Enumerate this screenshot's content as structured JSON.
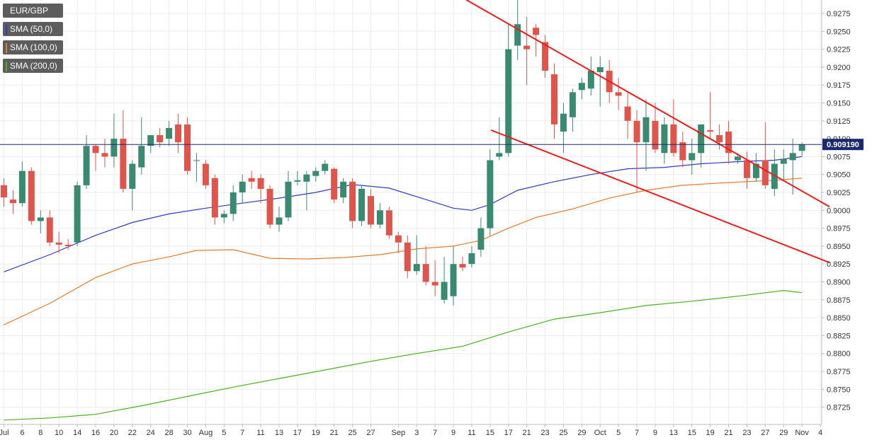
{
  "legend": [
    {
      "label": "EUR/GBP",
      "color": "#5d5d5d"
    },
    {
      "label": "SMA (50,0)",
      "color": "#2e3cc4"
    },
    {
      "label": "SMA (100,0)",
      "color": "#e8792a"
    },
    {
      "label": "SMA (200,0)",
      "color": "#4caf1f"
    }
  ],
  "current_price": {
    "value": 0.9092,
    "label": "0.909190"
  },
  "colors": {
    "up": "#3a8a72",
    "down": "#e0554b",
    "sma50": "#2e3cc4",
    "sma100": "#e8792a",
    "sma200": "#4caf1f",
    "trendline": "#ee1c1c",
    "price_line": "#1a2a6c"
  },
  "chart_data": {
    "type": "candlestick",
    "symbol": "EUR/GBP",
    "y_range": [
      0.8705,
      0.9295
    ],
    "y_ticks": [
      0.9275,
      0.925,
      0.9225,
      0.92,
      0.9175,
      0.915,
      0.9125,
      0.91,
      0.9075,
      0.905,
      0.9025,
      0.9,
      0.8975,
      0.895,
      0.8925,
      0.89,
      0.8875,
      0.885,
      0.8825,
      0.88,
      0.8775,
      0.875,
      0.8725
    ],
    "y_tick_labels": [
      "0.9275",
      "0.9250",
      "0.9225",
      "0.9200",
      "0.9175",
      "0.9150",
      "0.9125",
      "0.9100",
      "0.9075",
      "0.9050",
      "0.9025",
      "0.9000",
      "0.8975",
      "0.8950",
      "0.8925",
      "0.8900",
      "0.8875",
      "0.8850",
      "0.8825",
      "0.8800",
      "0.8775",
      "0.8750",
      "0.8725"
    ],
    "x_range": [
      0,
      116
    ],
    "x_ticks": [
      {
        "i": 0,
        "label": "Jul"
      },
      {
        "i": 2,
        "label": "6"
      },
      {
        "i": 4,
        "label": "8"
      },
      {
        "i": 6,
        "label": "10"
      },
      {
        "i": 8,
        "label": "14"
      },
      {
        "i": 10,
        "label": "16"
      },
      {
        "i": 12,
        "label": "20"
      },
      {
        "i": 14,
        "label": "22"
      },
      {
        "i": 16,
        "label": "24"
      },
      {
        "i": 18,
        "label": "28"
      },
      {
        "i": 20,
        "label": "30"
      },
      {
        "i": 22,
        "label": "Aug"
      },
      {
        "i": 24,
        "label": "5"
      },
      {
        "i": 26,
        "label": "7"
      },
      {
        "i": 28,
        "label": "11"
      },
      {
        "i": 30,
        "label": "13"
      },
      {
        "i": 32,
        "label": "17"
      },
      {
        "i": 34,
        "label": "19"
      },
      {
        "i": 36,
        "label": "21"
      },
      {
        "i": 38,
        "label": "25"
      },
      {
        "i": 40,
        "label": "27"
      },
      {
        "i": 43,
        "label": "Sep"
      },
      {
        "i": 45,
        "label": "3"
      },
      {
        "i": 47,
        "label": "7"
      },
      {
        "i": 49,
        "label": "9"
      },
      {
        "i": 51,
        "label": "11"
      },
      {
        "i": 53,
        "label": "15"
      },
      {
        "i": 55,
        "label": "17"
      },
      {
        "i": 57,
        "label": "21"
      },
      {
        "i": 59,
        "label": "23"
      },
      {
        "i": 61,
        "label": "25"
      },
      {
        "i": 63,
        "label": "29"
      },
      {
        "i": 65,
        "label": "Oct"
      },
      {
        "i": 67,
        "label": "5"
      },
      {
        "i": 69,
        "label": "7"
      },
      {
        "i": 71,
        "label": "9"
      },
      {
        "i": 73,
        "label": "13"
      },
      {
        "i": 75,
        "label": "15"
      },
      {
        "i": 77,
        "label": "19"
      },
      {
        "i": 79,
        "label": "21"
      },
      {
        "i": 81,
        "label": "23"
      },
      {
        "i": 83,
        "label": "27"
      },
      {
        "i": 85,
        "label": "29"
      },
      {
        "i": 87,
        "label": "Nov"
      },
      {
        "i": 89,
        "label": "4"
      }
    ],
    "candles": [
      {
        "o": 0.9035,
        "h": 0.9045,
        "l": 0.9005,
        "c": 0.9018
      },
      {
        "o": 0.9015,
        "h": 0.9028,
        "l": 0.8995,
        "c": 0.901
      },
      {
        "o": 0.901,
        "h": 0.9068,
        "l": 0.9005,
        "c": 0.9055
      },
      {
        "o": 0.9055,
        "h": 0.906,
        "l": 0.898,
        "c": 0.8985
      },
      {
        "o": 0.8985,
        "h": 0.9,
        "l": 0.8968,
        "c": 0.899
      },
      {
        "o": 0.899,
        "h": 0.9,
        "l": 0.895,
        "c": 0.8955
      },
      {
        "o": 0.8955,
        "h": 0.897,
        "l": 0.894,
        "c": 0.8952
      },
      {
        "o": 0.8952,
        "h": 0.896,
        "l": 0.8945,
        "c": 0.895
      },
      {
        "o": 0.8955,
        "h": 0.904,
        "l": 0.895,
        "c": 0.9035
      },
      {
        "o": 0.9035,
        "h": 0.9105,
        "l": 0.903,
        "c": 0.909
      },
      {
        "o": 0.909,
        "h": 0.9092,
        "l": 0.9055,
        "c": 0.908
      },
      {
        "o": 0.908,
        "h": 0.91,
        "l": 0.906,
        "c": 0.9075
      },
      {
        "o": 0.9075,
        "h": 0.9135,
        "l": 0.906,
        "c": 0.91
      },
      {
        "o": 0.91,
        "h": 0.914,
        "l": 0.9025,
        "c": 0.903
      },
      {
        "o": 0.903,
        "h": 0.907,
        "l": 0.9,
        "c": 0.9065
      },
      {
        "o": 0.906,
        "h": 0.913,
        "l": 0.905,
        "c": 0.909
      },
      {
        "o": 0.909,
        "h": 0.91,
        "l": 0.908,
        "c": 0.9105
      },
      {
        "o": 0.9105,
        "h": 0.9115,
        "l": 0.9088,
        "c": 0.9095
      },
      {
        "o": 0.91,
        "h": 0.9125,
        "l": 0.909,
        "c": 0.9115
      },
      {
        "o": 0.912,
        "h": 0.9135,
        "l": 0.908,
        "c": 0.9095
      },
      {
        "o": 0.912,
        "h": 0.913,
        "l": 0.905,
        "c": 0.9055
      },
      {
        "o": 0.907,
        "h": 0.908,
        "l": 0.904,
        "c": 0.907
      },
      {
        "o": 0.9065,
        "h": 0.907,
        "l": 0.903,
        "c": 0.9035
      },
      {
        "o": 0.9045,
        "h": 0.905,
        "l": 0.898,
        "c": 0.899
      },
      {
        "o": 0.899,
        "h": 0.9,
        "l": 0.8982,
        "c": 0.8995
      },
      {
        "o": 0.8995,
        "h": 0.9035,
        "l": 0.8985,
        "c": 0.9025
      },
      {
        "o": 0.9025,
        "h": 0.905,
        "l": 0.901,
        "c": 0.904
      },
      {
        "o": 0.9045,
        "h": 0.9055,
        "l": 0.903,
        "c": 0.904
      },
      {
        "o": 0.9045,
        "h": 0.905,
        "l": 0.901,
        "c": 0.903
      },
      {
        "o": 0.903,
        "h": 0.9035,
        "l": 0.8975,
        "c": 0.898
      },
      {
        "o": 0.898,
        "h": 0.9005,
        "l": 0.897,
        "c": 0.899
      },
      {
        "o": 0.899,
        "h": 0.9055,
        "l": 0.8985,
        "c": 0.904
      },
      {
        "o": 0.904,
        "h": 0.9055,
        "l": 0.9035,
        "c": 0.9042
      },
      {
        "o": 0.904,
        "h": 0.9055,
        "l": 0.9,
        "c": 0.905
      },
      {
        "o": 0.9048,
        "h": 0.906,
        "l": 0.904,
        "c": 0.9055
      },
      {
        "o": 0.9055,
        "h": 0.907,
        "l": 0.905,
        "c": 0.9065
      },
      {
        "o": 0.9058,
        "h": 0.906,
        "l": 0.901,
        "c": 0.9015
      },
      {
        "o": 0.9018,
        "h": 0.9045,
        "l": 0.901,
        "c": 0.904
      },
      {
        "o": 0.904,
        "h": 0.9045,
        "l": 0.8975,
        "c": 0.8985
      },
      {
        "o": 0.8985,
        "h": 0.9035,
        "l": 0.8978,
        "c": 0.903
      },
      {
        "o": 0.902,
        "h": 0.903,
        "l": 0.8975,
        "c": 0.898
      },
      {
        "o": 0.898,
        "h": 0.901,
        "l": 0.8975,
        "c": 0.9
      },
      {
        "o": 0.9,
        "h": 0.9005,
        "l": 0.896,
        "c": 0.8965
      },
      {
        "o": 0.8965,
        "h": 0.897,
        "l": 0.894,
        "c": 0.8955
      },
      {
        "o": 0.8955,
        "h": 0.8965,
        "l": 0.8905,
        "c": 0.8915
      },
      {
        "o": 0.8915,
        "h": 0.8965,
        "l": 0.891,
        "c": 0.8925
      },
      {
        "o": 0.8925,
        "h": 0.895,
        "l": 0.8895,
        "c": 0.89
      },
      {
        "o": 0.89,
        "h": 0.893,
        "l": 0.888,
        "c": 0.8895
      },
      {
        "o": 0.8875,
        "h": 0.8935,
        "l": 0.887,
        "c": 0.89
      },
      {
        "o": 0.888,
        "h": 0.895,
        "l": 0.8867,
        "c": 0.8925
      },
      {
        "o": 0.8925,
        "h": 0.8935,
        "l": 0.8915,
        "c": 0.892
      },
      {
        "o": 0.8925,
        "h": 0.895,
        "l": 0.892,
        "c": 0.894
      },
      {
        "o": 0.8945,
        "h": 0.899,
        "l": 0.8935,
        "c": 0.8975
      },
      {
        "o": 0.8975,
        "h": 0.9085,
        "l": 0.8965,
        "c": 0.907
      },
      {
        "o": 0.9075,
        "h": 0.913,
        "l": 0.907,
        "c": 0.908
      },
      {
        "o": 0.908,
        "h": 0.926,
        "l": 0.9075,
        "c": 0.9225
      },
      {
        "o": 0.923,
        "h": 0.9295,
        "l": 0.921,
        "c": 0.926
      },
      {
        "o": 0.923,
        "h": 0.927,
        "l": 0.9175,
        "c": 0.9225
      },
      {
        "o": 0.9255,
        "h": 0.926,
        "l": 0.9215,
        "c": 0.9245
      },
      {
        "o": 0.9235,
        "h": 0.9245,
        "l": 0.9185,
        "c": 0.9195
      },
      {
        "o": 0.919,
        "h": 0.9205,
        "l": 0.91,
        "c": 0.912
      },
      {
        "o": 0.911,
        "h": 0.915,
        "l": 0.908,
        "c": 0.9135
      },
      {
        "o": 0.913,
        "h": 0.917,
        "l": 0.911,
        "c": 0.9165
      },
      {
        "o": 0.9168,
        "h": 0.9185,
        "l": 0.9155,
        "c": 0.9178
      },
      {
        "o": 0.917,
        "h": 0.9215,
        "l": 0.916,
        "c": 0.9195
      },
      {
        "o": 0.9193,
        "h": 0.9215,
        "l": 0.9145,
        "c": 0.92
      },
      {
        "o": 0.9195,
        "h": 0.921,
        "l": 0.915,
        "c": 0.9165
      },
      {
        "o": 0.9165,
        "h": 0.9185,
        "l": 0.914,
        "c": 0.916
      },
      {
        "o": 0.9145,
        "h": 0.9165,
        "l": 0.91,
        "c": 0.9125
      },
      {
        "o": 0.9125,
        "h": 0.914,
        "l": 0.9025,
        "c": 0.9095
      },
      {
        "o": 0.9095,
        "h": 0.9155,
        "l": 0.9055,
        "c": 0.913
      },
      {
        "o": 0.9125,
        "h": 0.915,
        "l": 0.908,
        "c": 0.9085
      },
      {
        "o": 0.908,
        "h": 0.913,
        "l": 0.9065,
        "c": 0.912
      },
      {
        "o": 0.912,
        "h": 0.9155,
        "l": 0.9075,
        "c": 0.908
      },
      {
        "o": 0.9095,
        "h": 0.911,
        "l": 0.906,
        "c": 0.907
      },
      {
        "o": 0.907,
        "h": 0.91,
        "l": 0.905,
        "c": 0.908
      },
      {
        "o": 0.908,
        "h": 0.912,
        "l": 0.906,
        "c": 0.912
      },
      {
        "o": 0.9112,
        "h": 0.9165,
        "l": 0.91,
        "c": 0.911
      },
      {
        "o": 0.9105,
        "h": 0.912,
        "l": 0.9085,
        "c": 0.9095
      },
      {
        "o": 0.911,
        "h": 0.9125,
        "l": 0.9065,
        "c": 0.908
      },
      {
        "o": 0.907,
        "h": 0.908,
        "l": 0.9065,
        "c": 0.9075
      },
      {
        "o": 0.907,
        "h": 0.9082,
        "l": 0.903,
        "c": 0.9045
      },
      {
        "o": 0.9045,
        "h": 0.908,
        "l": 0.904,
        "c": 0.9065
      },
      {
        "o": 0.907,
        "h": 0.9123,
        "l": 0.903,
        "c": 0.9035
      },
      {
        "o": 0.903,
        "h": 0.9085,
        "l": 0.902,
        "c": 0.9065
      },
      {
        "o": 0.9065,
        "h": 0.9085,
        "l": 0.904,
        "c": 0.9072
      },
      {
        "o": 0.907,
        "h": 0.91,
        "l": 0.9022,
        "c": 0.908
      },
      {
        "o": 0.9083,
        "h": 0.9095,
        "l": 0.9075,
        "c": 0.9092
      }
    ],
    "sma50": [
      [
        0,
        0.8914
      ],
      [
        5,
        0.8938
      ],
      [
        10,
        0.8965
      ],
      [
        14,
        0.8983
      ],
      [
        18,
        0.8995
      ],
      [
        22,
        0.9003
      ],
      [
        26,
        0.901
      ],
      [
        30,
        0.9017
      ],
      [
        34,
        0.9025
      ],
      [
        38,
        0.9036
      ],
      [
        42,
        0.9031
      ],
      [
        46,
        0.9015
      ],
      [
        49,
        0.9003
      ],
      [
        51,
        0.9
      ],
      [
        53,
        0.9008
      ],
      [
        56,
        0.9028
      ],
      [
        60,
        0.904
      ],
      [
        64,
        0.905
      ],
      [
        68,
        0.9058
      ],
      [
        72,
        0.906
      ],
      [
        76,
        0.9065
      ],
      [
        80,
        0.9068
      ],
      [
        84,
        0.907
      ],
      [
        87,
        0.9075
      ]
    ],
    "sma100": [
      [
        0,
        0.884
      ],
      [
        5,
        0.887
      ],
      [
        10,
        0.8906
      ],
      [
        14,
        0.8925
      ],
      [
        18,
        0.8935
      ],
      [
        21,
        0.8944
      ],
      [
        25,
        0.8945
      ],
      [
        29,
        0.8933
      ],
      [
        33,
        0.8932
      ],
      [
        37,
        0.8934
      ],
      [
        41,
        0.8938
      ],
      [
        45,
        0.8946
      ],
      [
        49,
        0.895
      ],
      [
        52,
        0.8958
      ],
      [
        55,
        0.8975
      ],
      [
        58,
        0.899
      ],
      [
        62,
        0.9002
      ],
      [
        66,
        0.9017
      ],
      [
        70,
        0.9028
      ],
      [
        74,
        0.9035
      ],
      [
        78,
        0.9038
      ],
      [
        84,
        0.9042
      ],
      [
        87,
        0.9045
      ]
    ],
    "sma200": [
      [
        0,
        0.8707
      ],
      [
        5,
        0.871
      ],
      [
        10,
        0.8715
      ],
      [
        15,
        0.8727
      ],
      [
        20,
        0.874
      ],
      [
        25,
        0.8753
      ],
      [
        30,
        0.8765
      ],
      [
        35,
        0.8777
      ],
      [
        40,
        0.8789
      ],
      [
        45,
        0.88
      ],
      [
        50,
        0.881
      ],
      [
        55,
        0.883
      ],
      [
        60,
        0.8848
      ],
      [
        65,
        0.8857
      ],
      [
        70,
        0.8867
      ],
      [
        75,
        0.8873
      ],
      [
        80,
        0.888
      ],
      [
        85,
        0.8888
      ],
      [
        87,
        0.8885
      ]
    ],
    "trendlines": [
      {
        "x1": 50.4,
        "y1": 0.9294,
        "x2": 90.0,
        "y2": 0.9005
      },
      {
        "x1": 53.1,
        "y1": 0.9112,
        "x2": 90.0,
        "y2": 0.8927
      }
    ]
  }
}
